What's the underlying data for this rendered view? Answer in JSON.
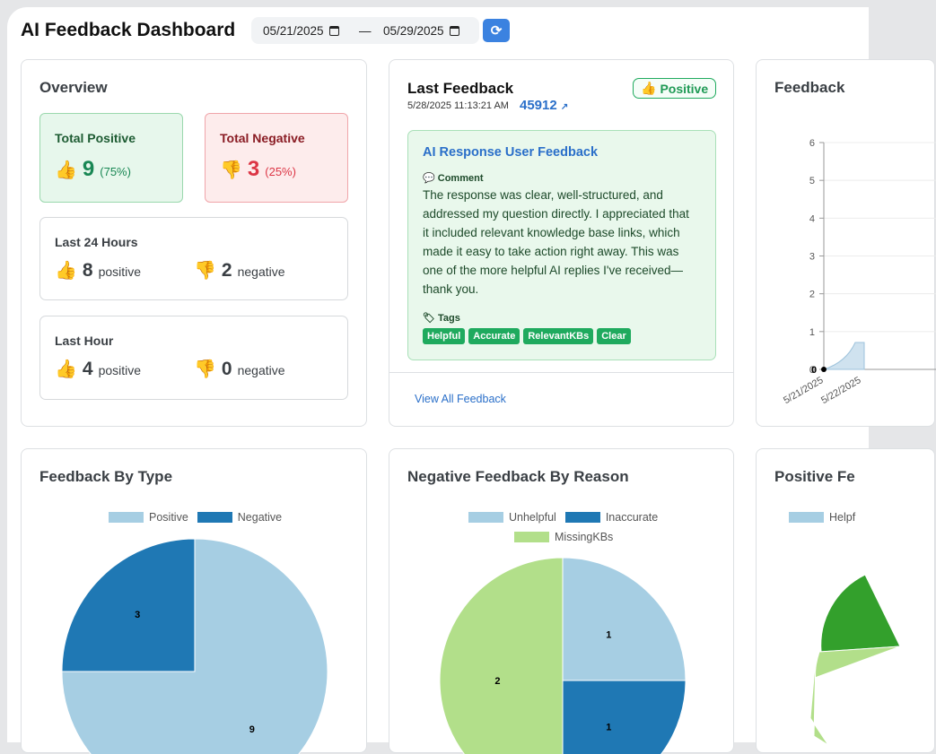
{
  "header": {
    "title": "AI Feedback Dashboard",
    "date_start": "05/21/2025",
    "date_sep": "—",
    "date_end": "05/29/2025",
    "refresh_icon": "refresh-icon"
  },
  "overview": {
    "title": "Overview",
    "total_positive": {
      "label": "Total Positive",
      "icon": "👍",
      "value": "9",
      "pct": "(75%)"
    },
    "total_negative": {
      "label": "Total Negative",
      "icon": "👎",
      "value": "3",
      "pct": "(25%)"
    },
    "last24": {
      "label": "Last 24 Hours",
      "positive": "8",
      "positive_word": "positive",
      "negative": "2",
      "negative_word": "negative"
    },
    "last_hour": {
      "label": "Last Hour",
      "positive": "4",
      "positive_word": "positive",
      "negative": "0",
      "negative_word": "negative"
    },
    "thumbs_up": "👍",
    "thumbs_down": "👎"
  },
  "last_feedback": {
    "title": "Last Feedback",
    "timestamp": "5/28/2025 11:13:21 AM",
    "id": "45912",
    "id_icon": "↗",
    "badge_icon": "👍",
    "badge": "Positive",
    "heading": "AI Response User Feedback",
    "comment_label": "Comment",
    "comment": "The response was clear, well-structured, and addressed my question directly. I appreciated that it included relevant knowledge base links, which made it easy to take action right away. This was one of the more helpful AI replies I've received—thank you.",
    "tags_label": "Tags",
    "tags": [
      "Helpful",
      "Accurate",
      "RelevantKBs",
      "Clear"
    ],
    "view_all": "View All Feedback"
  },
  "trend": {
    "title": "Feedback",
    "chart_data": {
      "type": "area",
      "x": [
        "5/21/2025",
        "5/22/2025"
      ],
      "yticks": [
        "0",
        "1",
        "2",
        "3",
        "4",
        "5",
        "6"
      ],
      "ylim": [
        0,
        6
      ],
      "point_label": "0"
    }
  },
  "by_type": {
    "title": "Feedback By Type",
    "chart_data": {
      "type": "pie",
      "categories": [
        "Positive",
        "Negative"
      ],
      "values": [
        9,
        3
      ],
      "colors": [
        "#a6cee3",
        "#1f78b4"
      ]
    }
  },
  "neg_reason": {
    "title": "Negative Feedback By Reason",
    "chart_data": {
      "type": "pie",
      "categories": [
        "Unhelpful",
        "Inaccurate",
        "MissingKBs"
      ],
      "values": [
        1,
        1,
        2
      ],
      "colors": [
        "#a6cee3",
        "#1f78b4",
        "#b2df8a"
      ]
    }
  },
  "pos_reason": {
    "title": "Positive Fe",
    "legend_first": "Helpf",
    "colors": [
      "#a6cee3",
      "#33a02c",
      "#b2df8a"
    ]
  }
}
